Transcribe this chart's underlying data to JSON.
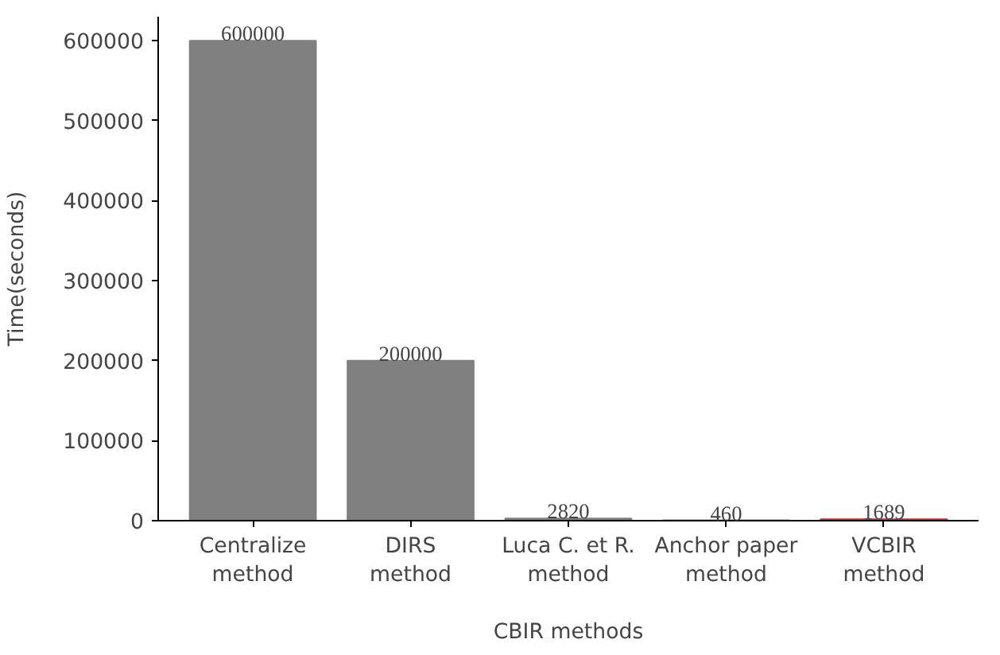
{
  "chart_data": {
    "type": "bar",
    "xlabel": "CBIR methods",
    "ylabel": "Time(seconds)",
    "categories": [
      "Centralize\nmethod",
      "DIRS\nmethod",
      "Luca C. et R.\nmethod",
      "Anchor paper\nmethod",
      "VCBIR\nmethod"
    ],
    "values": [
      600000,
      200000,
      2820,
      460,
      1689
    ],
    "colors": [
      "#808080",
      "#808080",
      "#808080",
      "#808080",
      "#d62728"
    ],
    "data_labels": true,
    "ylim": [
      0,
      630000
    ],
    "yticks": [
      0,
      100000,
      200000,
      300000,
      400000,
      500000,
      600000
    ],
    "grid": false
  }
}
